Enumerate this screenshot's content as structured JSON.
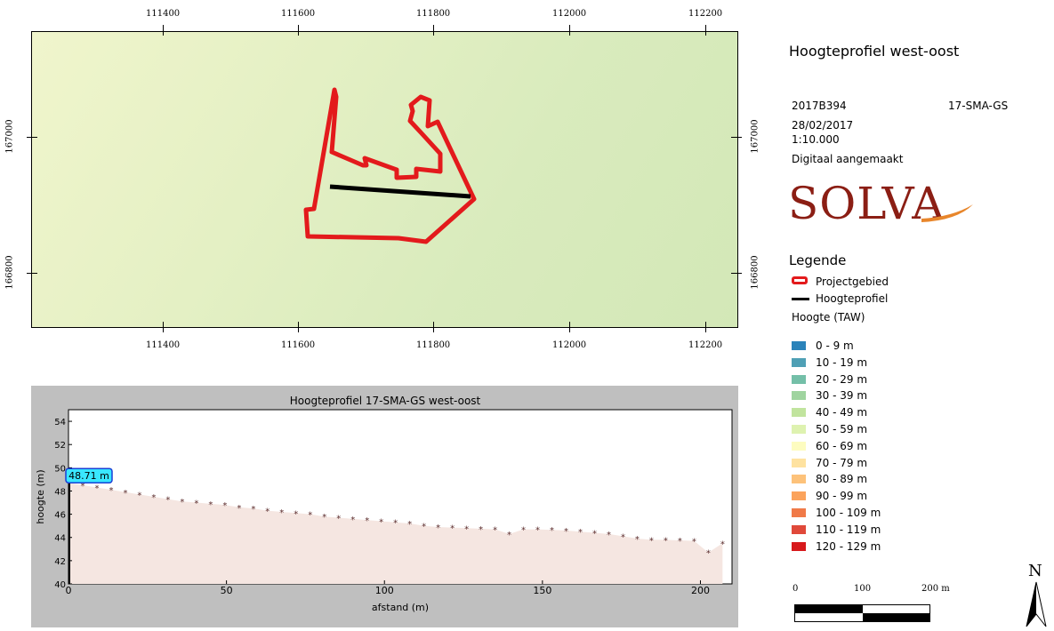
{
  "map": {
    "top_ticks": [
      "111400",
      "111600",
      "111800",
      "112000",
      "112200"
    ],
    "bottom_ticks": [
      "111400",
      "111600",
      "111800",
      "112000",
      "112200"
    ],
    "left_ticks": [
      "167000",
      "166800"
    ],
    "right_ticks": [
      "167000",
      "166800"
    ],
    "project_color": "#e31a1c",
    "profile_line_color": "#000000"
  },
  "sidebar": {
    "title": "Hoogteprofiel west-oost",
    "project_code": "2017B394",
    "site_code": "17-SMA-GS",
    "date": "28/02/2017",
    "scale": "1:10.000",
    "note": "Digitaal aangemaakt",
    "logo_text": "SOLVA",
    "legend_title": "Legende",
    "legend_project": "Projectgebied",
    "legend_profile": "Hoogteprofiel",
    "elevation_title": "Hoogte (TAW)",
    "elevation_classes": [
      {
        "label": "0 - 9 m",
        "color": "#2b83ba"
      },
      {
        "label": "10 - 19 m",
        "color": "#4fa0b5"
      },
      {
        "label": "20 - 29 m",
        "color": "#74bfa8"
      },
      {
        "label": "30 - 39 m",
        "color": "#9fd49f"
      },
      {
        "label": "40 - 49 m",
        "color": "#c1e49e"
      },
      {
        "label": "50 - 59 m",
        "color": "#def2b0"
      },
      {
        "label": "60 - 69 m",
        "color": "#fdfcc0"
      },
      {
        "label": "70 - 79 m",
        "color": "#fee2a0"
      },
      {
        "label": "80 - 89 m",
        "color": "#fdc27a"
      },
      {
        "label": "90 - 99 m",
        "color": "#fba35c"
      },
      {
        "label": "100 - 109 m",
        "color": "#f07a48"
      },
      {
        "label": "110 - 119 m",
        "color": "#e0493a"
      },
      {
        "label": "120 - 129 m",
        "color": "#d7191c"
      }
    ],
    "scalebar_labels": [
      "0",
      "100",
      "200 m"
    ],
    "north_label": "N"
  },
  "chart_data": {
    "type": "area",
    "title": "Hoogteprofiel 17-SMA-GS west-oost",
    "xlabel": "afstand (m)",
    "ylabel": "hoogte (m)",
    "xlim": [
      0,
      210
    ],
    "ylim": [
      40,
      55
    ],
    "x_ticks": [
      0,
      50,
      100,
      150,
      200
    ],
    "y_ticks": [
      40,
      42,
      44,
      46,
      48,
      50,
      52,
      54
    ],
    "annotation": "48.71 m",
    "fill_color": "#f5e6e1",
    "marker_color": "#5a2a2a",
    "x": [
      0,
      4.5,
      9,
      13.5,
      18,
      22.5,
      27,
      31.5,
      36,
      40.5,
      45,
      49.5,
      54,
      58.5,
      63,
      67.5,
      72,
      76.5,
      81,
      85.5,
      90,
      94.5,
      99,
      103.5,
      108,
      112.5,
      117,
      121.5,
      126,
      130.5,
      135,
      139.5,
      144,
      148.5,
      153,
      157.5,
      162,
      166.5,
      171,
      175.5,
      180,
      184.5,
      189,
      193.5,
      198,
      202.5,
      207
    ],
    "y": [
      48.71,
      48.5,
      48.3,
      48.1,
      47.9,
      47.7,
      47.5,
      47.3,
      47.1,
      47.0,
      46.9,
      46.8,
      46.6,
      46.5,
      46.3,
      46.2,
      46.1,
      46.0,
      45.8,
      45.7,
      45.6,
      45.5,
      45.4,
      45.3,
      45.2,
      45.0,
      44.9,
      44.85,
      44.8,
      44.75,
      44.7,
      44.3,
      44.7,
      44.7,
      44.65,
      44.6,
      44.5,
      44.4,
      44.3,
      44.1,
      43.9,
      43.8,
      43.8,
      43.75,
      43.7,
      42.7,
      43.5
    ]
  }
}
